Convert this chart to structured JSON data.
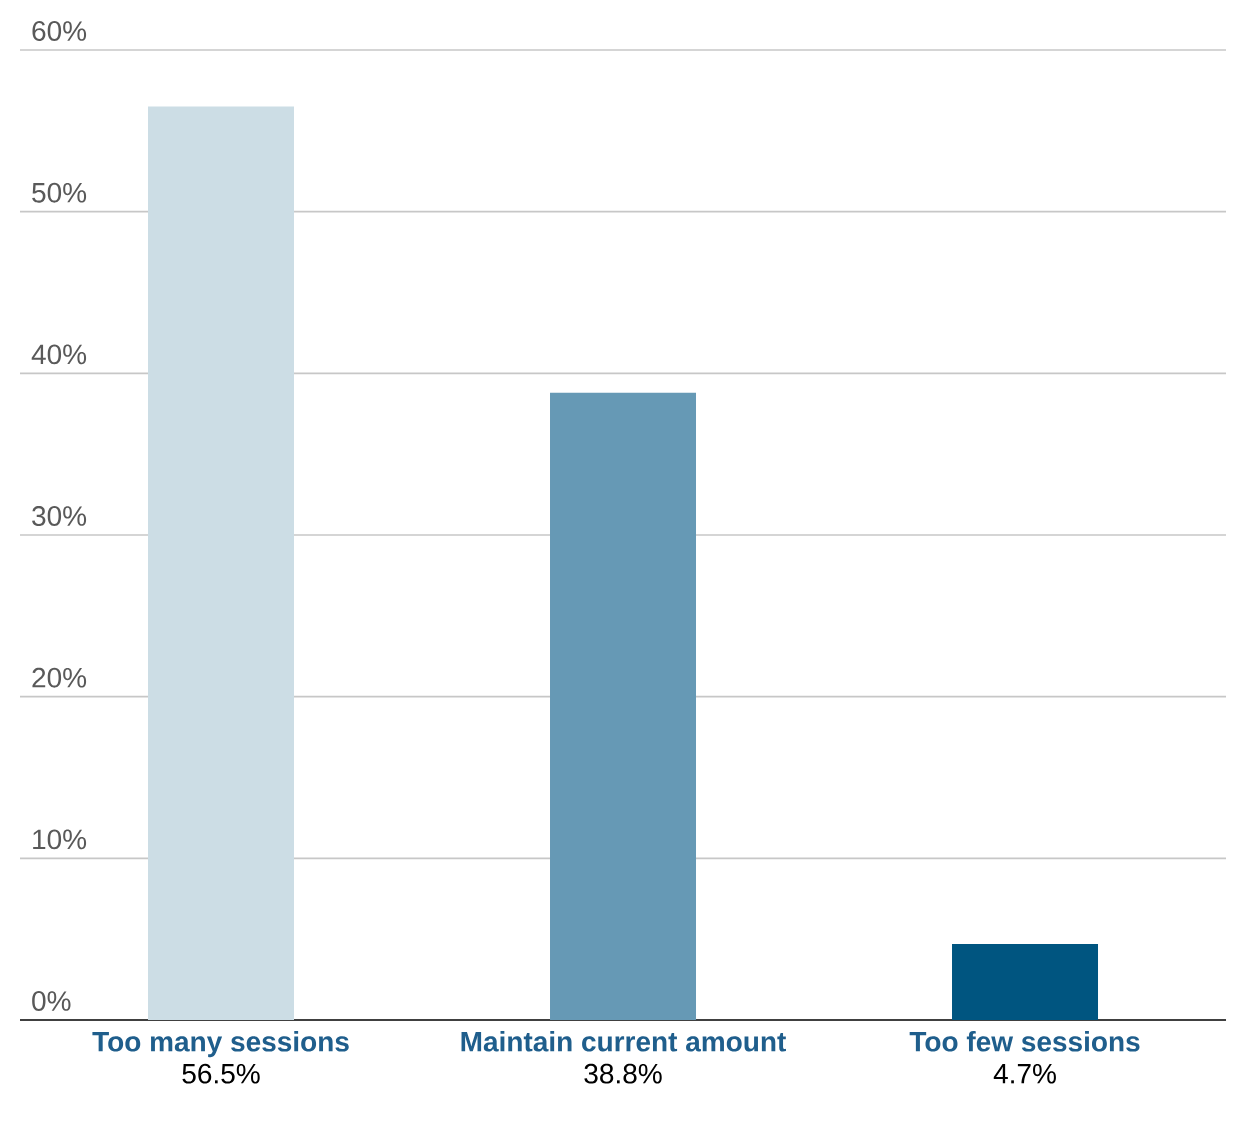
{
  "chart_data": {
    "type": "bar",
    "categories": [
      "Too many sessions",
      "Maintain current amount",
      "Too few sessions"
    ],
    "values": [
      56.5,
      38.8,
      4.7
    ],
    "colors": [
      "#ccdde5",
      "#6699b5",
      "#005580"
    ],
    "value_labels": [
      "56.5%",
      "38.8%",
      "4.7%"
    ],
    "ylim": [
      0,
      60
    ],
    "yticks": [
      {
        "value": 0,
        "label": "0%"
      },
      {
        "value": 10,
        "label": "10%"
      },
      {
        "value": 20,
        "label": "20%"
      },
      {
        "value": 30,
        "label": "30%"
      },
      {
        "value": 40,
        "label": "40%"
      },
      {
        "value": 50,
        "label": "50%"
      },
      {
        "value": 60,
        "label": "60%"
      }
    ],
    "grid": "y"
  }
}
